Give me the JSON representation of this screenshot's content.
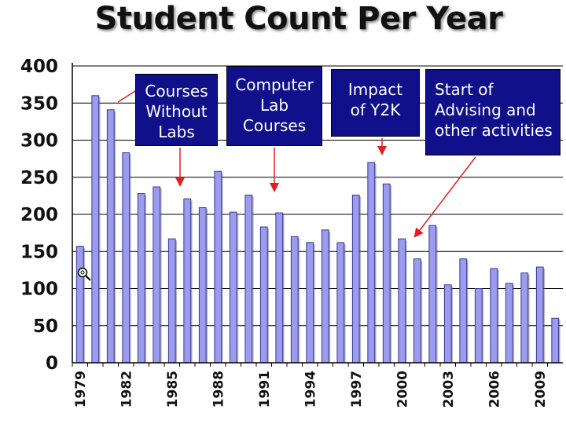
{
  "chart_data": {
    "type": "bar",
    "title": "Student Count Per Year",
    "categories": [
      "1979",
      "1980",
      "1981",
      "1982",
      "1983",
      "1984",
      "1985",
      "1986",
      "1987",
      "1988",
      "1989",
      "1990",
      "1991",
      "1992",
      "1993",
      "1994",
      "1995",
      "1996",
      "1997",
      "1998",
      "1999",
      "2000",
      "2001",
      "2002",
      "2003",
      "2004",
      "2005",
      "2006",
      "2007",
      "2008",
      "2009",
      "2010"
    ],
    "x_tick_labels": [
      "1979",
      "1982",
      "1985",
      "1988",
      "1991",
      "1994",
      "1997",
      "2000",
      "2003",
      "2006",
      "2009"
    ],
    "values": [
      157,
      360,
      341,
      283,
      228,
      237,
      167,
      221,
      209,
      258,
      203,
      226,
      183,
      202,
      170,
      162,
      179,
      162,
      226,
      270,
      241,
      167,
      140,
      185,
      105,
      140,
      100,
      127,
      107,
      121,
      129,
      60
    ],
    "ylim": [
      0,
      400
    ],
    "y_ticks": [
      "0",
      "50",
      "100",
      "150",
      "200",
      "250",
      "300",
      "350",
      "400"
    ],
    "xlabel": "",
    "ylabel": "",
    "grid": "horizontal",
    "bar_color": "#9b9bef",
    "bar_edge_color": "#3a3a8a",
    "annotations": [
      {
        "text": "Courses\nWithout\nLabs",
        "target_year": "1985"
      },
      {
        "text": "Computer\nLab\nCourses",
        "target_year": "1991"
      },
      {
        "text": "Impact\nof Y2K",
        "target_year": "1998"
      },
      {
        "text": "Start of\nAdvising and\nother activities",
        "target_year": "2002"
      }
    ],
    "annotation_box_color": "#10108a",
    "annotation_arrow_color": "#e02020"
  },
  "icons": {
    "zoom": "magnifier-icon"
  }
}
